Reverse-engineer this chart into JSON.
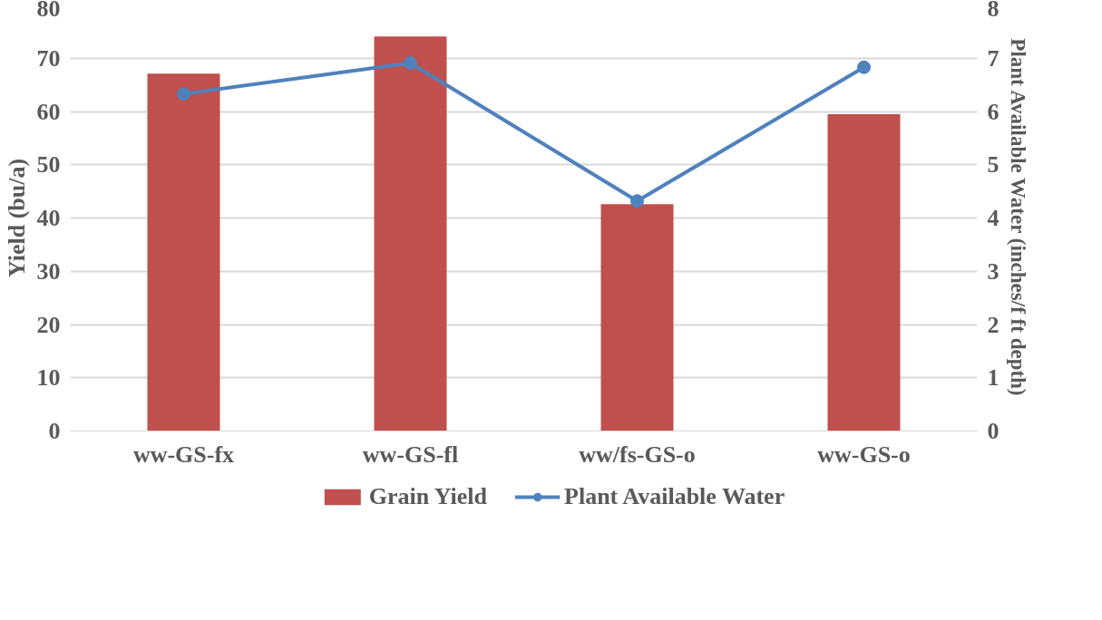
{
  "chart_data": {
    "type": "bar",
    "categories": [
      "ww-GS-fx",
      "ww-GS-fl",
      "ww/fs-GS-o",
      "ww-GS-o"
    ],
    "series": [
      {
        "name": "Grain Yield",
        "color": "#c0504d",
        "values": [
          67.1,
          74.1,
          42.6,
          59.5
        ]
      },
      {
        "name": "Plant Available Water",
        "type": "line",
        "axis": "y2",
        "color": "#4f81bd",
        "marker": "circle",
        "values": [
          6.33,
          6.91,
          4.32,
          6.83
        ]
      }
    ],
    "ylabel": "Yield (bu/a)",
    "y2label": "Plant Available Water (inches/f ft depth)",
    "ylim": [
      0,
      80
    ],
    "yticks": [
      0,
      10,
      20,
      30,
      40,
      50,
      60,
      70,
      80
    ],
    "y2lim": [
      0,
      8
    ],
    "y2ticks": [
      0,
      1,
      2,
      3,
      4,
      5,
      6,
      7,
      8
    ],
    "grid": "y",
    "legend": "bottom"
  }
}
